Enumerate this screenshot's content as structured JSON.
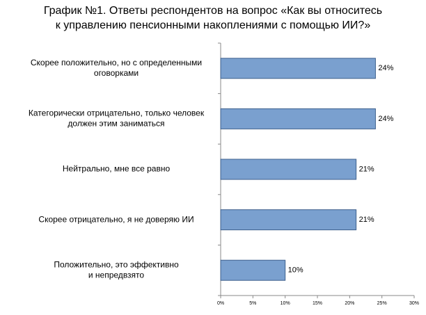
{
  "chart_data": {
    "type": "bar",
    "orientation": "horizontal",
    "title": [
      "График №1. Ответы респондентов на вопрос «Как вы относитесь",
      "к управлению пенсионными накоплениями с помощью ИИ?»"
    ],
    "categories": [
      [
        "Скорее положительно, но с определенными",
        "оговорками"
      ],
      [
        "Категорически отрицательно, только человек",
        "должен этим заниматься"
      ],
      [
        "Нейтрально, мне все равно"
      ],
      [
        "Скорее отрицательно, я не доверяю ИИ"
      ],
      [
        "Положительно, это эффективно",
        "и непредвзято"
      ]
    ],
    "values": [
      24,
      24,
      21,
      21,
      10
    ],
    "value_labels": [
      "24%",
      "24%",
      "21%",
      "21%",
      "10%"
    ],
    "color": "#7aa0cf",
    "xlim": [
      0,
      30
    ],
    "xticks": [
      {
        "value": 0,
        "label": "0%"
      },
      {
        "value": 5,
        "label": "5%"
      },
      {
        "value": 10,
        "label": "10%"
      },
      {
        "value": 15,
        "label": "15%"
      },
      {
        "value": 20,
        "label": "20%"
      },
      {
        "value": 25,
        "label": "25%"
      },
      {
        "value": 30,
        "label": "30%"
      }
    ],
    "grid": false
  }
}
